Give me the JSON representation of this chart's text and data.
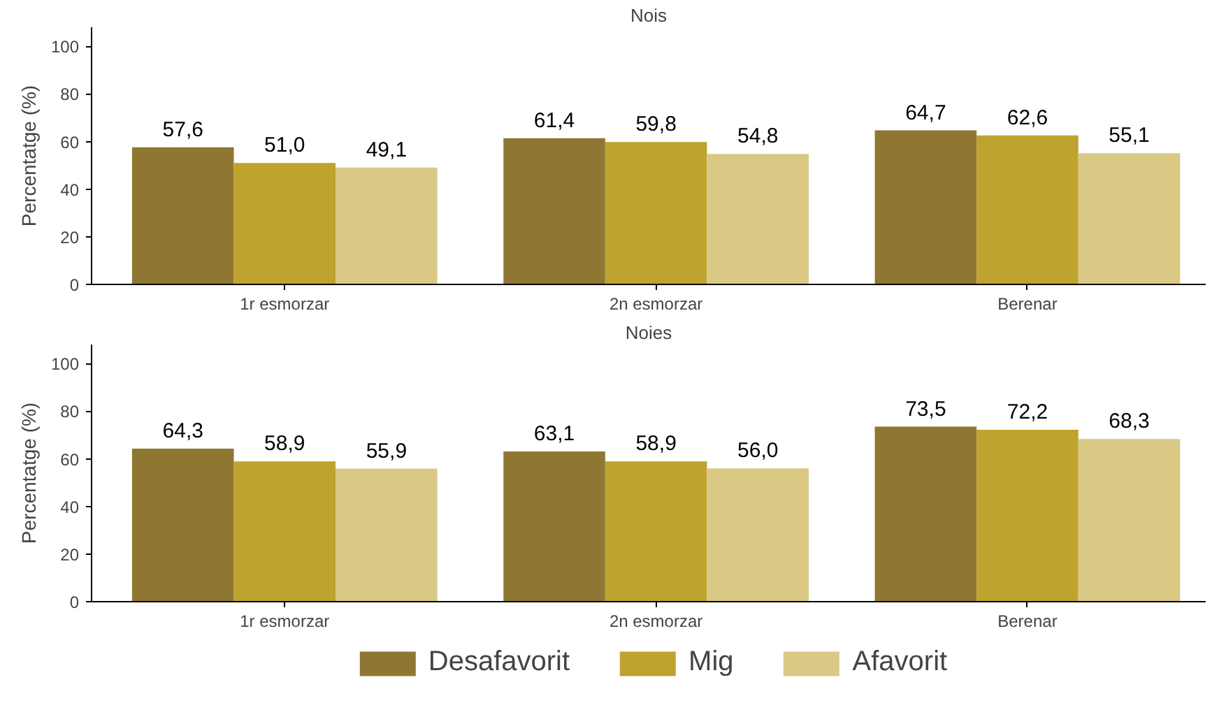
{
  "chart_data": [
    {
      "type": "bar",
      "title": "Nois",
      "ylabel": "Percentatge (%)",
      "categories": [
        "1r esmorzar",
        "2n esmorzar",
        "Berenar"
      ],
      "ylim": [
        0,
        108
      ],
      "yticks": [
        0,
        20,
        40,
        60,
        80,
        100
      ],
      "grid": false,
      "legend": false,
      "series": [
        {
          "color": "#8f7733",
          "values": [
            57.6,
            61.4,
            64.7
          ],
          "value_labels": [
            "57,6",
            "61,4",
            "64,7"
          ]
        },
        {
          "color": "#bea32e",
          "values": [
            51.0,
            59.8,
            62.6
          ],
          "value_labels": [
            "51,0",
            "59,8",
            "62,6"
          ]
        },
        {
          "color": "#d9c985",
          "values": [
            49.1,
            54.8,
            55.1
          ],
          "value_labels": [
            "49,1",
            "54,8",
            "55,1"
          ]
        }
      ]
    },
    {
      "type": "bar",
      "title": "Noies",
      "ylabel": "Percentatge (%)",
      "categories": [
        "1r esmorzar",
        "2n esmorzar",
        "Berenar"
      ],
      "ylim": [
        0,
        108
      ],
      "yticks": [
        0,
        20,
        40,
        60,
        80,
        100
      ],
      "grid": false,
      "legend": "bottom",
      "series": [
        {
          "name": "Desafavorit",
          "color": "#8f7733",
          "values": [
            64.3,
            63.1,
            73.5
          ],
          "value_labels": [
            "64,3",
            "63,1",
            "73,5"
          ]
        },
        {
          "name": "Mig",
          "color": "#bea32e",
          "values": [
            58.9,
            58.9,
            72.2
          ],
          "value_labels": [
            "58,9",
            "58,9",
            "72,2"
          ]
        },
        {
          "name": "Afavorit",
          "color": "#d9c985",
          "values": [
            55.9,
            56.0,
            68.3
          ],
          "value_labels": [
            "55,9",
            "56,0",
            "68,3"
          ]
        }
      ]
    }
  ]
}
